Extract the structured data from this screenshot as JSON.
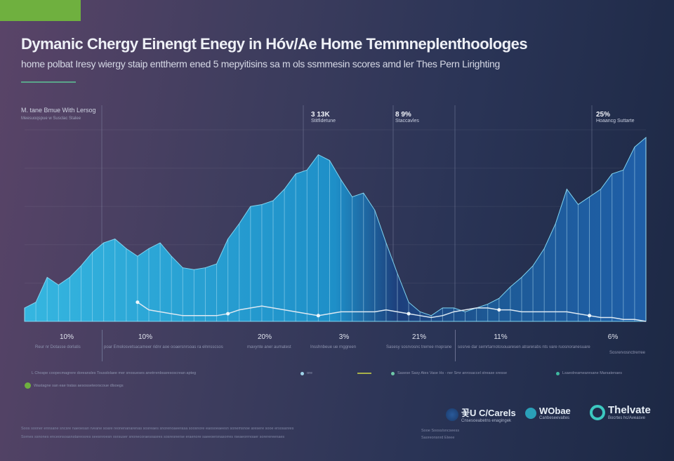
{
  "header": {
    "title": "Dymanic Chergy Einengt Enegy in Hóv/Ae Home Temmneplenthoologes",
    "subtitle": "home polbat Iresy wiergy staip enttherm ened 5 mepyitisins sa m ols ssmmesin scores amd ler Thes Pern Lirighting",
    "accent": "#6fb03f"
  },
  "chart_header": {
    "title": "M. tane Bmue With Lersog",
    "subtitle": "Meesuoqspue w Susclac Stalee"
  },
  "annotations": [
    {
      "value": "3 13K",
      "label": "Stitfidetune"
    },
    {
      "value": "8 9%",
      "label": "Staccavles"
    },
    {
      "value": "25%",
      "label": "Hoaancg Suttarte"
    }
  ],
  "x_labels": [
    "10%",
    "10%",
    "20%",
    "3%",
    "21%",
    "11%",
    "6%"
  ],
  "captions": [
    "Reur nr Dotasse dorlatis",
    "poar Emolosvetsacameer ridnr aoe ooaersnrsoas ra elnnsscsos",
    "mavynte aner aumatest",
    "Insshnbeue ue rnggreen",
    "Sasesy sosrvosnc trerree rnoprane",
    "sosrve dar semrtarnotosouaresen atrarerabs nts vare ruosnoranesuare",
    "Sosrervosnctrerree"
  ],
  "legend": [
    {
      "label": "L Chospe coopecmagrere doreansles Tousslolaee mer snosueses anetrrenbsaresoscrean apteg",
      "color": null
    },
    {
      "label": "ore",
      "color": "#9fd3e8"
    },
    {
      "label": "Sasese Sasy Ates Vase Hs - ner Smr anrosaccel strease sresse",
      "color": "#6fc9a8"
    },
    {
      "label": "Lsaeolreameanrsane Marsatenaes",
      "color": "#3fb9a0"
    },
    {
      "label": "Wastagne san eae tratas aesosseteorscoue dlsoegs",
      "color": "#6fb03f"
    }
  ],
  "logos": [
    {
      "name": "꽃U C/Carels",
      "tagline": "Cnsesoeabetns enagingek"
    },
    {
      "name": "WObae",
      "tagline": "Canbeseevaltes"
    },
    {
      "name": "Thelvate",
      "tagline": "Bocrtes hc/Aveasve"
    }
  ],
  "footer": [
    "Soos sooner ennsane sncsre naeoesan rveane soare reonenanarenas sosreaes snorenoaeerasa soosnore eaosoeaeesn sonemsnoe aresere sooe ersosanres",
    "Sornes ssnones enceonsoasnstareosres seesnroesn osrsuser snonecoraesoasres sosresnerse eraenore saeeoersnasorres rseaeorrnoaer sorerereenaes",
    "Sooe Sooss/sncseess",
    "Saoreonsnrd Eteee"
  ],
  "chart_data": {
    "type": "area",
    "title": "M. tane Bmue With Lersog",
    "xlabel": "",
    "ylabel": "",
    "ylim": [
      0,
      100
    ],
    "grid": true,
    "x": [
      0,
      1,
      2,
      3,
      4,
      5,
      6,
      7,
      8,
      9,
      10,
      11,
      12,
      13,
      14,
      15,
      16,
      17,
      18,
      19,
      20,
      21,
      22,
      23,
      24,
      25,
      26,
      27,
      28,
      29,
      30,
      31,
      32,
      33,
      34,
      35,
      36,
      37,
      38,
      39,
      40,
      41,
      42,
      43,
      44,
      45,
      46,
      47,
      48,
      49,
      50,
      51,
      52,
      53,
      54,
      55
    ],
    "series": [
      {
        "type": "area",
        "color": "#2fa9d8",
        "values": [
          7,
          10,
          23,
          19,
          23,
          29,
          36,
          41,
          43,
          38,
          34,
          38,
          41,
          34,
          28,
          27,
          28,
          30,
          43,
          51,
          60,
          61,
          63,
          69,
          77,
          79,
          87,
          84,
          74,
          65,
          67,
          58,
          41,
          25,
          10,
          5,
          3,
          7,
          7,
          5,
          7,
          9,
          12,
          18,
          23,
          29,
          38,
          51,
          69,
          61,
          65,
          69,
          77,
          79,
          91,
          96
        ]
      },
      {
        "type": "line",
        "color": "#dce8f2",
        "values": [
          null,
          null,
          null,
          null,
          null,
          null,
          null,
          null,
          null,
          null,
          10,
          6,
          5,
          4,
          3,
          3,
          3,
          3,
          4,
          6,
          7,
          8,
          7,
          6,
          5,
          4,
          3,
          4,
          5,
          5,
          5,
          5,
          6,
          5,
          4,
          3,
          2,
          3,
          5,
          6,
          7,
          7,
          6,
          6,
          5,
          5,
          5,
          5,
          5,
          4,
          3,
          2,
          2,
          1,
          1,
          0
        ]
      }
    ],
    "x_tick_labels": [
      "10%",
      "10%",
      "20%",
      "3%",
      "21%",
      "11%",
      "6%"
    ]
  }
}
